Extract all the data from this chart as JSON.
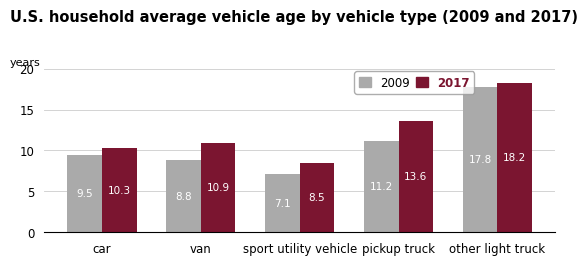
{
  "title": "U.S. household average vehicle age by vehicle type (2009 and 2017)",
  "ylabel": "years",
  "categories": [
    "car",
    "van",
    "sport utility vehicle",
    "pickup truck",
    "other light truck"
  ],
  "values_2009": [
    9.5,
    8.8,
    7.1,
    11.2,
    17.8
  ],
  "values_2017": [
    10.3,
    10.9,
    8.5,
    13.6,
    18.2
  ],
  "color_2009": "#aaaaaa",
  "color_2017": "#7b1530",
  "ylim": [
    0,
    20
  ],
  "yticks": [
    0,
    5,
    10,
    15,
    20
  ],
  "bar_width": 0.35,
  "legend_2009": "2009",
  "legend_2017": "2017",
  "label_fontsize": 8.5,
  "value_fontsize": 7.5,
  "title_fontsize": 10.5,
  "ylabel_fontsize": 8
}
